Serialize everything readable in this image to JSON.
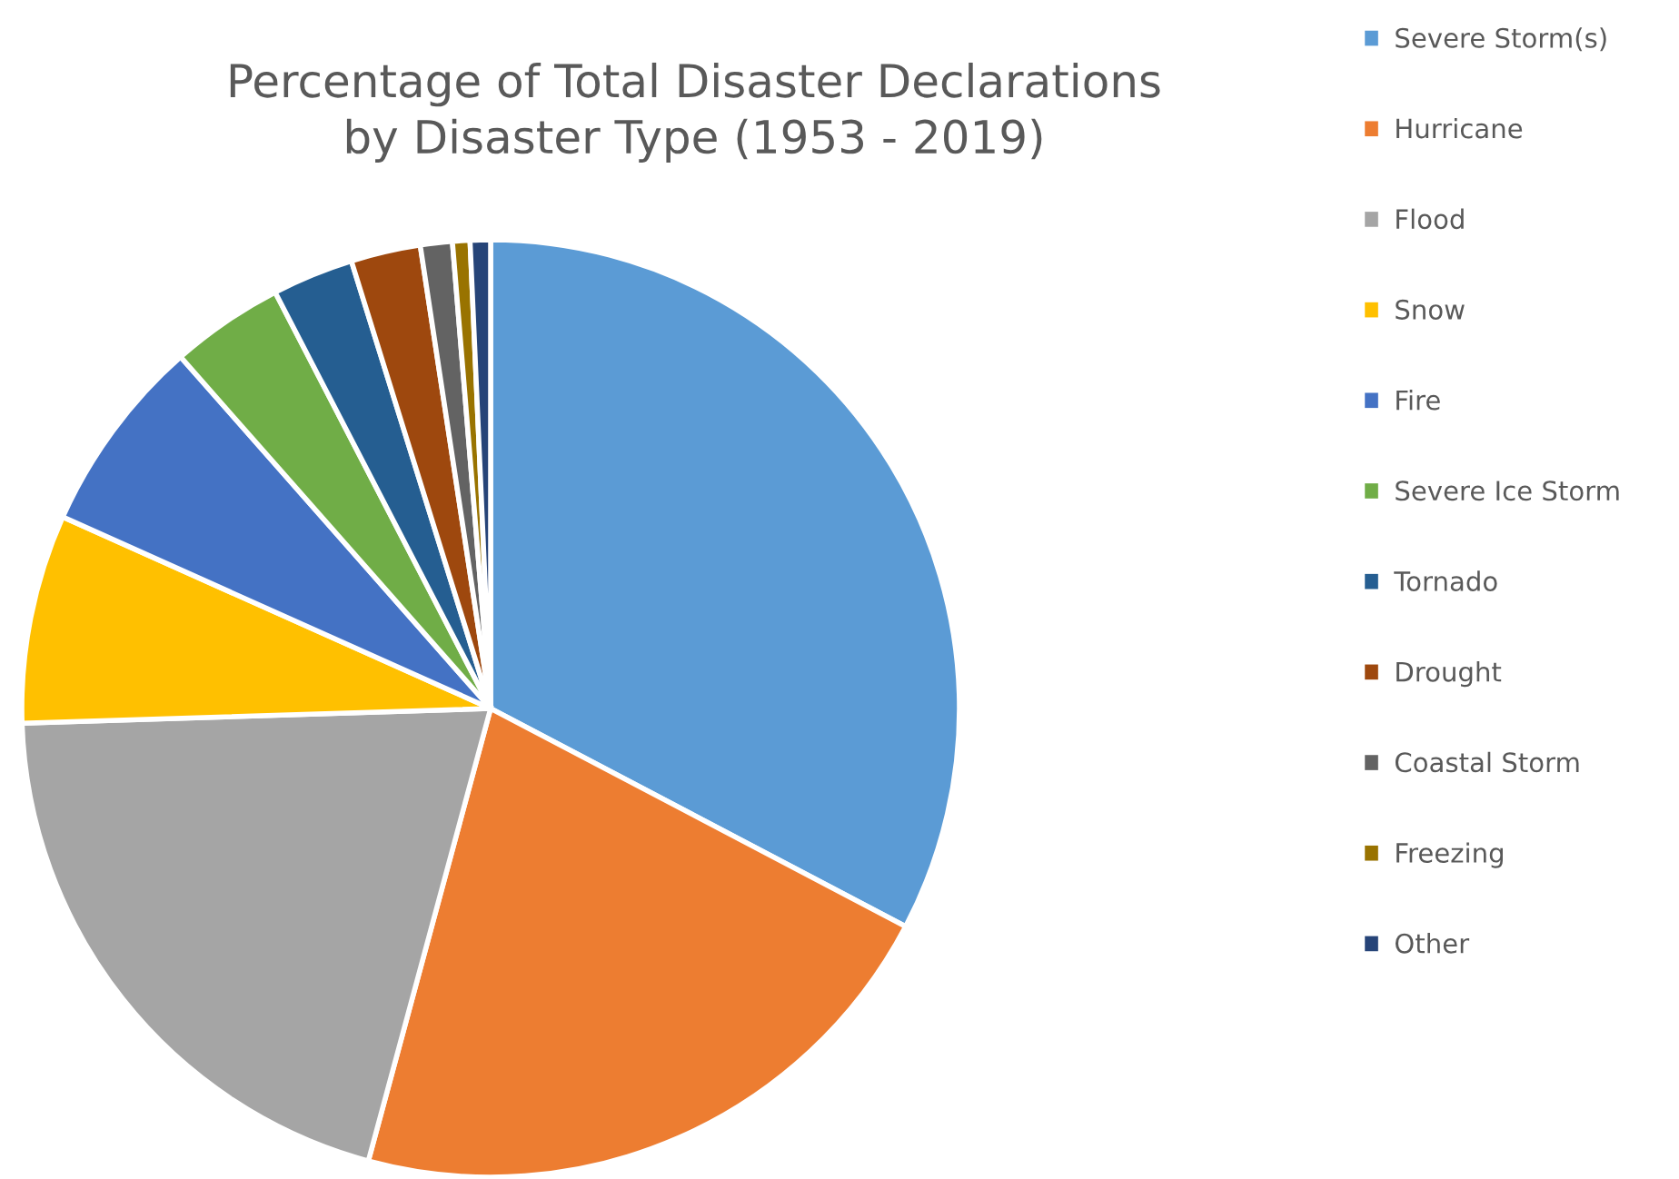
{
  "chart_data": {
    "type": "pie",
    "title": "Percentage of Total Disaster Declarations\nby Disaster Type (1953 - 2019)",
    "categories": [
      "Severe Storm(s)",
      "Hurricane",
      "Flood",
      "Snow",
      "Fire",
      "Severe Ice Storm",
      "Tornado",
      "Drought",
      "Coastal Storm",
      "Freezing",
      "Other"
    ],
    "values": [
      32.7,
      21.5,
      20.3,
      7.2,
      6.8,
      3.9,
      2.8,
      2.4,
      1.1,
      0.6,
      0.7
    ],
    "colors": [
      "#5b9bd5",
      "#ed7d31",
      "#a5a5a5",
      "#ffc000",
      "#4472c4",
      "#70ad47",
      "#255e91",
      "#9e480e",
      "#636363",
      "#997300",
      "#264478"
    ],
    "legend": "right"
  }
}
